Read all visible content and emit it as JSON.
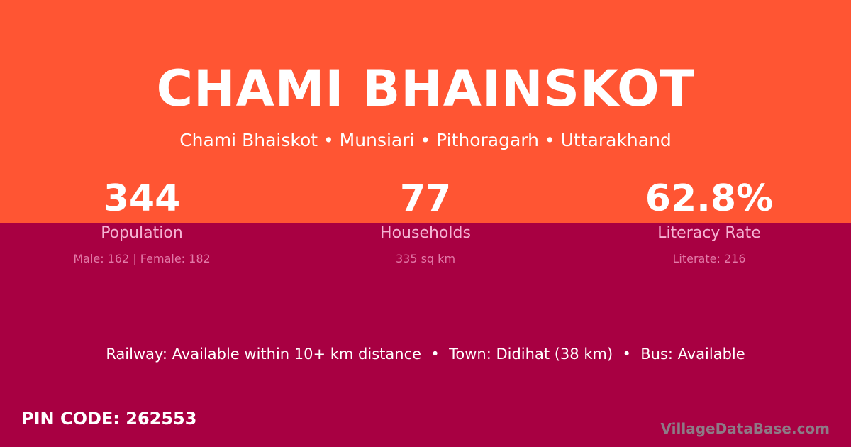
{
  "colors": {
    "top": "#ff5533",
    "bottom": "#a80042"
  },
  "title": "CHAMI BHAINSKOT",
  "subtitle": "Chami Bhaiskot • Munsiari • Pithoragarh • Uttarakhand",
  "stats": [
    {
      "value": "344",
      "label": "Population",
      "detail": "Male: 162 | Female: 182"
    },
    {
      "value": "77",
      "label": "Households",
      "detail": "335 sq km"
    },
    {
      "value": "62.8%",
      "label": "Literacy Rate",
      "detail": "Literate: 216"
    }
  ],
  "connectivity": "Railway: Available within 10+ km distance  •  Town: Didihat (38 km)  •  Bus: Available",
  "pin": "PIN CODE: 262553",
  "brand": "VillageDataBase.com"
}
